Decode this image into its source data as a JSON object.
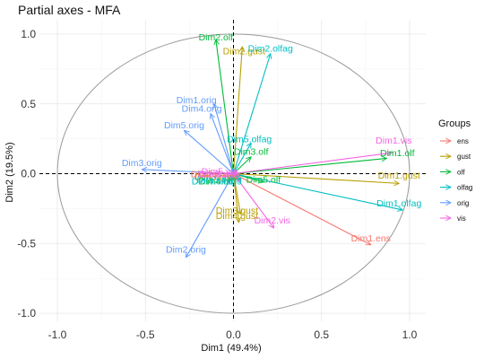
{
  "chart_data": {
    "type": "scatter",
    "title": "Partial axes - MFA",
    "xlabel": "Dim1 (49.4%)",
    "ylabel": "Dim2 (19.5%)",
    "xlim": [
      -1.1,
      1.1
    ],
    "ylim": [
      -1.05,
      1.1
    ],
    "xticks": [
      -1.0,
      -0.5,
      0.0,
      0.5,
      1.0
    ],
    "xtick_labels": [
      "-1.0",
      "-0.5",
      "0.0",
      "0.5",
      "1.0"
    ],
    "yticks": [
      -1.0,
      -0.5,
      0.0,
      0.5,
      1.0
    ],
    "ytick_labels": [
      "-1.0",
      "-0.5",
      "0.0",
      "0.5",
      "1.0"
    ],
    "grid": true,
    "unit_circle": true,
    "legend": {
      "title": "Groups",
      "placement": "right",
      "entries": [
        {
          "name": "ens",
          "color": "#F8766D"
        },
        {
          "name": "gust",
          "color": "#B79F00"
        },
        {
          "name": "olf",
          "color": "#00BA38"
        },
        {
          "name": "olfag",
          "color": "#00BFC4"
        },
        {
          "name": "orig",
          "color": "#619CFF"
        },
        {
          "name": "vis",
          "color": "#F564E3"
        }
      ]
    },
    "arrows": [
      {
        "label": "Dim1.ens",
        "group": "ens",
        "x": 0.78,
        "y": -0.51,
        "lx": 0.78,
        "ly": -0.46
      },
      {
        "label": "Dim2.ens",
        "group": "ens",
        "x": 0.02,
        "y": -0.04,
        "lx": -0.13,
        "ly": 0.0
      },
      {
        "label": "Dim3.ens",
        "group": "ens",
        "x": 0.03,
        "y": -0.05,
        "lx": -0.11,
        "ly": -0.02
      },
      {
        "label": "Dim1.gust",
        "group": "gust",
        "x": 0.94,
        "y": -0.07,
        "lx": 0.94,
        "ly": -0.01
      },
      {
        "label": "Dim2.gust",
        "group": "gust",
        "x": 0.05,
        "y": 0.91,
        "lx": 0.06,
        "ly": 0.88
      },
      {
        "label": "Dim3.gust",
        "group": "gust",
        "x": 0.04,
        "y": -0.29,
        "lx": 0.02,
        "ly": -0.26
      },
      {
        "label": "Dim4.gust",
        "group": "gust",
        "x": 0.03,
        "y": -0.35,
        "lx": 0.02,
        "ly": -0.3
      },
      {
        "label": "Dim5.gust",
        "group": "gust",
        "x": -0.01,
        "y": 0.02,
        "lx": -0.1,
        "ly": -0.02
      },
      {
        "label": "Dim1.olf",
        "group": "olf",
        "x": 0.87,
        "y": 0.11,
        "lx": 0.93,
        "ly": 0.15
      },
      {
        "label": "Dim2.olf",
        "group": "olf",
        "x": -0.1,
        "y": 0.96,
        "lx": -0.1,
        "ly": 0.98
      },
      {
        "label": "Dim3.olf",
        "group": "olf",
        "x": 0.1,
        "y": 0.12,
        "lx": 0.1,
        "ly": 0.16
      },
      {
        "label": "Dim4.olf",
        "group": "olf",
        "x": -0.03,
        "y": -0.06,
        "lx": -0.1,
        "ly": -0.05
      },
      {
        "label": "Dim5.olf",
        "group": "olf",
        "x": 0.17,
        "y": -0.06,
        "lx": 0.17,
        "ly": -0.04
      },
      {
        "label": "Dim1.olfag",
        "group": "olfag",
        "x": 0.96,
        "y": -0.26,
        "lx": 0.94,
        "ly": -0.21
      },
      {
        "label": "Dim2.olfag",
        "group": "olfag",
        "x": 0.21,
        "y": 0.86,
        "lx": 0.21,
        "ly": 0.9
      },
      {
        "label": "Dim3.olfag",
        "group": "olfag",
        "x": 0.04,
        "y": -0.05,
        "lx": -0.08,
        "ly": -0.04
      },
      {
        "label": "Dim4.olfag",
        "group": "olfag",
        "x": 0.02,
        "y": -0.02,
        "lx": -0.11,
        "ly": -0.05
      },
      {
        "label": "Dim5.olfag",
        "group": "olfag",
        "x": 0.1,
        "y": 0.22,
        "lx": 0.09,
        "ly": 0.25
      },
      {
        "label": "Dim1.orig",
        "group": "orig",
        "x": -0.11,
        "y": 0.5,
        "lx": -0.21,
        "ly": 0.53
      },
      {
        "label": "Dim2.orig",
        "group": "orig",
        "x": -0.27,
        "y": -0.6,
        "lx": -0.27,
        "ly": -0.54
      },
      {
        "label": "Dim3.orig",
        "group": "orig",
        "x": -0.52,
        "y": 0.03,
        "lx": -0.52,
        "ly": 0.08
      },
      {
        "label": "Dim4.orig",
        "group": "orig",
        "x": -0.13,
        "y": 0.43,
        "lx": -0.18,
        "ly": 0.47
      },
      {
        "label": "Dim5.orig",
        "group": "orig",
        "x": -0.28,
        "y": 0.31,
        "lx": -0.28,
        "ly": 0.35
      },
      {
        "label": "Dim1.vis",
        "group": "vis",
        "x": 0.9,
        "y": 0.15,
        "lx": 0.91,
        "ly": 0.24
      },
      {
        "label": "Dim2.vis",
        "group": "vis",
        "x": 0.23,
        "y": -0.39,
        "lx": 0.22,
        "ly": -0.33
      },
      {
        "label": "Dim3.vis",
        "group": "vis",
        "x": 0.03,
        "y": -0.01,
        "lx": -0.1,
        "ly": 0.0
      },
      {
        "label": "Dim4.vis",
        "group": "vis",
        "x": 0.01,
        "y": -0.02,
        "lx": -0.09,
        "ly": 0.0
      },
      {
        "label": "Dim5.vis",
        "group": "vis",
        "x": 0.02,
        "y": 0.02,
        "lx": -0.08,
        "ly": 0.02
      }
    ]
  }
}
